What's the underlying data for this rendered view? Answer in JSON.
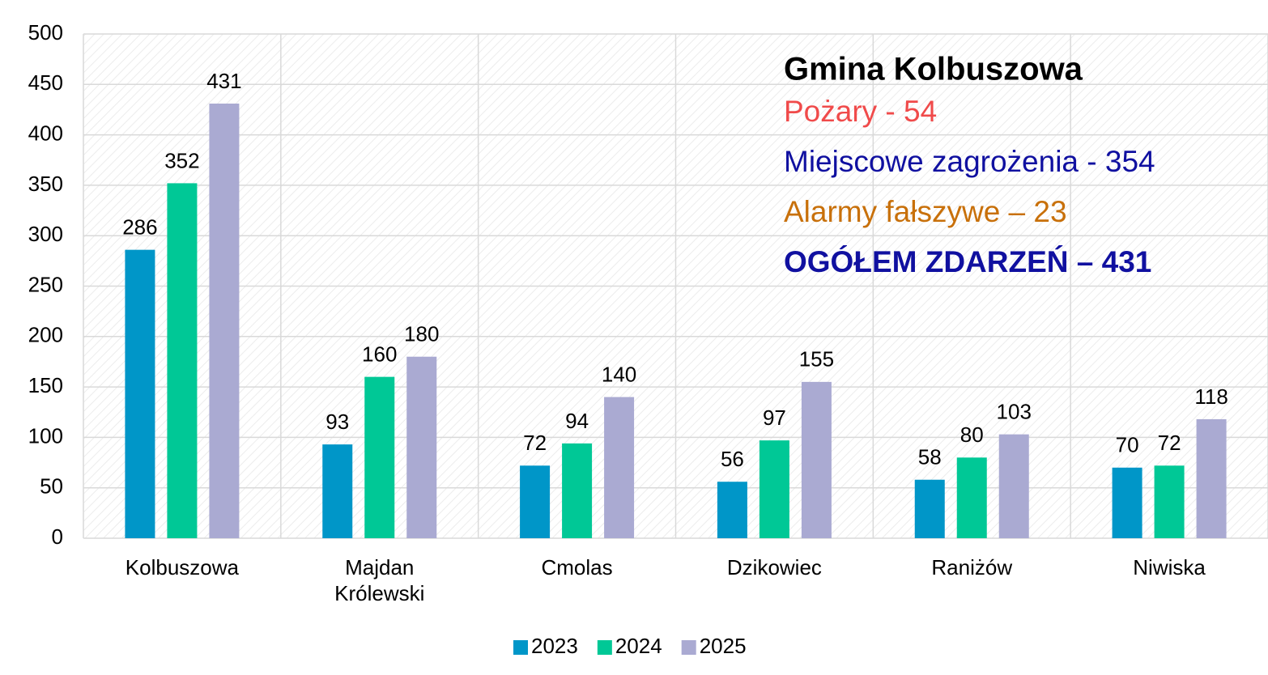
{
  "chart_data": {
    "type": "bar",
    "categories": [
      "Kolbuszowa",
      "Majdan Królewski",
      "Cmolas",
      "Dzikowiec",
      "Raniżów",
      "Niwiska"
    ],
    "series": [
      {
        "name": "2023",
        "color": "#0096c8",
        "values": [
          286,
          93,
          72,
          56,
          58,
          70
        ]
      },
      {
        "name": "2024",
        "color": "#00c896",
        "values": [
          352,
          160,
          94,
          97,
          80,
          72
        ]
      },
      {
        "name": "2025",
        "color": "#aaaad2",
        "values": [
          431,
          180,
          140,
          155,
          103,
          118
        ]
      }
    ],
    "ylim": [
      0,
      500
    ],
    "yticks": [
      0,
      50,
      100,
      150,
      200,
      250,
      300,
      350,
      400,
      450,
      500
    ],
    "grid": true,
    "legend": "bottom",
    "annotation": {
      "title": "Gmina Kolbuszowa",
      "lines": [
        {
          "text": "Pożary - 54",
          "color": "#f04a4a",
          "bold": false
        },
        {
          "text": "Miejscowe zagrożenia - 354",
          "color": "#1010a0",
          "bold": false
        },
        {
          "text": "Alarmy fałszywe – 23",
          "color": "#c8700a",
          "bold": false
        },
        {
          "text": "OGÓŁEM ZDARZEŃ – 431",
          "color": "#1010a0",
          "bold": true
        }
      ]
    }
  }
}
